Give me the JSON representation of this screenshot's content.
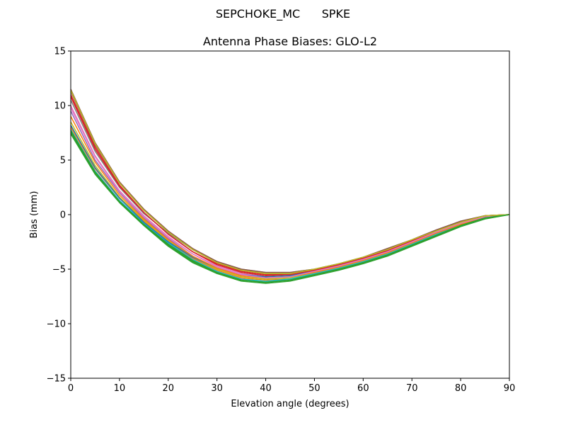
{
  "figure": {
    "suptitle": "SEPCHOKE_MC      SPKE"
  },
  "chart_data": {
    "type": "line",
    "title": "Antenna Phase Biases: GLO-L2",
    "xlabel": "Elevation angle (degrees)",
    "ylabel": "Bias (mm)",
    "xlim": [
      0,
      90
    ],
    "ylim": [
      -15,
      15
    ],
    "xticks": [
      0,
      10,
      20,
      30,
      40,
      50,
      60,
      70,
      80,
      90
    ],
    "yticks": [
      -15,
      -10,
      -5,
      0,
      5,
      10,
      15
    ],
    "ytick_labels": [
      "−15",
      "−10",
      "−5",
      "0",
      "5",
      "10",
      "15"
    ],
    "grid": false,
    "legend": "none",
    "x": [
      0,
      5,
      10,
      15,
      20,
      25,
      30,
      35,
      40,
      45,
      50,
      55,
      60,
      65,
      70,
      75,
      80,
      85,
      90
    ],
    "series": [
      {
        "color": "#1f77b4",
        "values": [
          7.5,
          3.8,
          1.2,
          -0.9,
          -2.8,
          -4.3,
          -5.3,
          -6.0,
          -6.2,
          -6.0,
          -5.5,
          -5.0,
          -4.4,
          -3.7,
          -2.8,
          -1.9,
          -1.0,
          -0.3,
          0.0
        ]
      },
      {
        "color": "#ff7f0e",
        "values": [
          8.0,
          4.2,
          1.5,
          -0.6,
          -2.5,
          -4.0,
          -5.1,
          -5.8,
          -6.0,
          -5.9,
          -5.4,
          -4.9,
          -4.3,
          -3.6,
          -2.7,
          -1.8,
          -0.9,
          -0.3,
          0.0
        ]
      },
      {
        "color": "#2ca02c",
        "values": [
          7.4,
          3.7,
          1.1,
          -1.0,
          -2.9,
          -4.4,
          -5.4,
          -6.1,
          -6.3,
          -6.1,
          -5.6,
          -5.1,
          -4.5,
          -3.8,
          -2.9,
          -2.0,
          -1.1,
          -0.4,
          0.0
        ]
      },
      {
        "color": "#d62728",
        "values": [
          11.0,
          6.2,
          2.7,
          0.2,
          -1.8,
          -3.4,
          -4.6,
          -5.3,
          -5.6,
          -5.5,
          -5.1,
          -4.6,
          -4.0,
          -3.3,
          -2.5,
          -1.6,
          -0.8,
          -0.2,
          0.0
        ]
      },
      {
        "color": "#9467bd",
        "values": [
          9.5,
          5.0,
          2.0,
          -0.3,
          -2.2,
          -3.8,
          -4.9,
          -5.6,
          -5.8,
          -5.7,
          -5.2,
          -4.7,
          -4.1,
          -3.4,
          -2.6,
          -1.7,
          -0.9,
          -0.2,
          0.0
        ]
      },
      {
        "color": "#8c564b",
        "values": [
          11.3,
          6.4,
          2.9,
          0.4,
          -1.6,
          -3.2,
          -4.4,
          -5.1,
          -5.4,
          -5.4,
          -5.0,
          -4.5,
          -3.9,
          -3.2,
          -2.4,
          -1.5,
          -0.7,
          -0.1,
          0.0
        ]
      },
      {
        "color": "#e377c2",
        "values": [
          10.0,
          5.4,
          2.2,
          -0.1,
          -2.0,
          -3.6,
          -4.7,
          -5.4,
          -5.7,
          -5.6,
          -5.1,
          -4.6,
          -4.0,
          -3.3,
          -2.5,
          -1.6,
          -0.8,
          -0.2,
          0.0
        ]
      },
      {
        "color": "#7f7f7f",
        "values": [
          10.5,
          5.8,
          2.5,
          0.1,
          -1.7,
          -3.2,
          -4.3,
          -5.0,
          -5.3,
          -5.3,
          -5.0,
          -4.5,
          -3.9,
          -3.2,
          -2.3,
          -1.4,
          -0.6,
          -0.1,
          0.0
        ]
      },
      {
        "color": "#bcbd22",
        "values": [
          8.5,
          4.5,
          1.6,
          -0.5,
          -2.4,
          -3.9,
          -5.0,
          -5.7,
          -5.9,
          -5.8,
          -5.3,
          -4.8,
          -4.2,
          -3.5,
          -2.6,
          -1.7,
          -0.9,
          -0.3,
          0.0
        ]
      },
      {
        "color": "#17becf",
        "values": [
          7.8,
          4.0,
          1.3,
          -0.8,
          -2.6,
          -4.1,
          -5.2,
          -5.9,
          -6.1,
          -5.9,
          -5.4,
          -4.9,
          -4.3,
          -3.6,
          -2.7,
          -1.8,
          -1.0,
          -0.3,
          0.0
        ]
      },
      {
        "color": "#1f77b4",
        "values": [
          8.2,
          4.3,
          1.5,
          -0.7,
          -2.5,
          -3.9,
          -4.9,
          -5.5,
          -5.7,
          -5.6,
          -5.2,
          -4.7,
          -4.1,
          -3.4,
          -2.6,
          -1.7,
          -0.9,
          -0.2,
          0.0
        ]
      },
      {
        "color": "#ff7f0e",
        "values": [
          9.0,
          4.8,
          1.8,
          -0.4,
          -2.3,
          -3.8,
          -4.9,
          -5.6,
          -5.8,
          -5.7,
          -5.3,
          -4.8,
          -4.2,
          -3.5,
          -2.6,
          -1.7,
          -0.9,
          -0.2,
          0.0
        ]
      },
      {
        "color": "#d62728",
        "values": [
          10.8,
          6.0,
          2.6,
          0.2,
          -1.8,
          -3.4,
          -4.5,
          -5.2,
          -5.5,
          -5.5,
          -5.1,
          -4.6,
          -4.0,
          -3.3,
          -2.4,
          -1.5,
          -0.7,
          -0.1,
          0.0
        ]
      },
      {
        "color": "#e377c2",
        "values": [
          9.8,
          5.3,
          2.1,
          -0.2,
          -2.1,
          -3.6,
          -4.8,
          -5.5,
          -5.8,
          -5.7,
          -5.2,
          -4.7,
          -4.1,
          -3.4,
          -2.5,
          -1.6,
          -0.8,
          -0.2,
          0.0
        ]
      },
      {
        "color": "#2ca02c",
        "values": [
          7.7,
          3.9,
          1.2,
          -0.9,
          -2.7,
          -4.2,
          -5.3,
          -6.0,
          -6.2,
          -6.0,
          -5.5,
          -5.0,
          -4.4,
          -3.7,
          -2.8,
          -1.9,
          -1.0,
          -0.3,
          0.0
        ]
      },
      {
        "color": "#8c564b",
        "values": [
          11.5,
          6.6,
          3.0,
          0.5,
          -1.5,
          -3.1,
          -4.3,
          -5.0,
          -5.3,
          -5.3,
          -5.0,
          -4.5,
          -3.9,
          -3.1,
          -2.3,
          -1.4,
          -0.6,
          -0.1,
          0.0
        ]
      },
      {
        "color": "#bcbd22",
        "values": [
          11.4,
          6.5,
          2.9,
          0.4,
          -1.6,
          -3.2,
          -4.4,
          -5.1,
          -5.4,
          -5.4,
          -5.0,
          -4.5,
          -3.9,
          -3.2,
          -2.3,
          -1.5,
          -0.7,
          -0.1,
          0.0
        ]
      },
      {
        "color": "#2ca02c",
        "values": [
          7.6,
          3.8,
          1.2,
          -0.9,
          -2.8,
          -4.3,
          -5.3,
          -6.0,
          -6.2,
          -6.0,
          -5.5,
          -5.0,
          -4.4,
          -3.7,
          -2.8,
          -1.9,
          -1.0,
          -0.3,
          0.0
        ]
      }
    ]
  }
}
